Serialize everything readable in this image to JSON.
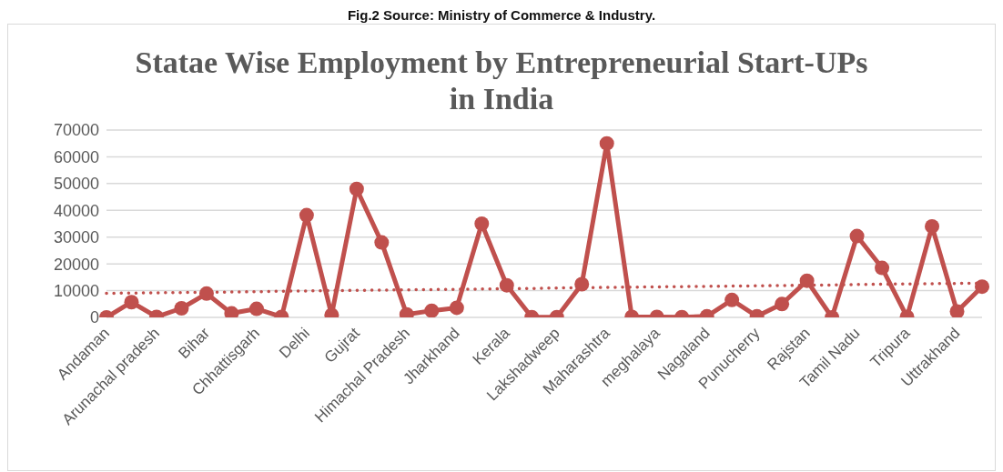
{
  "chart_data": {
    "type": "line",
    "title": "Statae Wise Employment by Entrepreneurial Start-UPs in India",
    "annotations": [
      "Fig.2 Source: Ministry of Commerce & Industry."
    ],
    "categories": [
      "Andaman",
      null,
      "Arunachal pradesh",
      null,
      "Bihar",
      null,
      "Chhattisgarh",
      null,
      "Delhi",
      null,
      "Gujrat",
      null,
      "Himachal Pradesh",
      null,
      "Jharkhand",
      null,
      "Kerala",
      null,
      "Lakshadweep",
      null,
      "Maharashtra",
      null,
      "meghalaya",
      null,
      "Nagaland",
      null,
      "Punucherry",
      null,
      "Rajstan",
      null,
      "Tamil Nadu",
      null,
      "Tripura",
      null,
      "Uttrakhand",
      null
    ],
    "series": [
      {
        "color": "#c0504d",
        "marker": "circle",
        "line_style": "solid",
        "values": [
          0,
          5700,
          200,
          3400,
          8900,
          1500,
          3200,
          200,
          38200,
          900,
          48000,
          28000,
          1100,
          2500,
          3600,
          35000,
          12000,
          100,
          100,
          12400,
          65000,
          200,
          200,
          100,
          400,
          6500,
          400,
          5000,
          13700,
          0,
          30400,
          18500,
          200,
          34000,
          2200,
          11500
        ]
      },
      {
        "type": "line",
        "color": "#c0504d",
        "marker": "none",
        "line_style": "dotted",
        "values": [
          9000,
          9100,
          9200,
          9300,
          9400,
          9500,
          9600,
          9800,
          9900,
          10000,
          10100,
          10200,
          10300,
          10400,
          10500,
          10600,
          10700,
          10800,
          11000,
          11100,
          11200,
          11300,
          11400,
          11500,
          11600,
          11700,
          11800,
          11900,
          12000,
          12100,
          12300,
          12400,
          12500,
          12600,
          12700,
          12800
        ]
      }
    ],
    "ylim": [
      0,
      70000
    ],
    "yticks": [
      0,
      10000,
      20000,
      30000,
      40000,
      50000,
      60000,
      70000
    ],
    "grid": "y"
  }
}
